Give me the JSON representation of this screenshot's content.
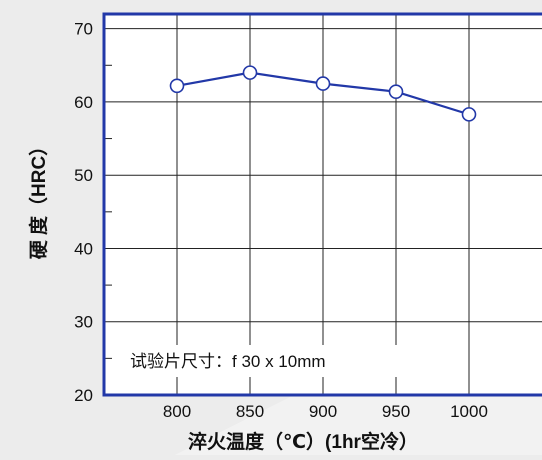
{
  "chart_data": {
    "type": "line",
    "xlabel": "淬火温度（℃）(1hr空冷）",
    "ylabel": "硬 度（HRC）",
    "x": [
      800,
      850,
      900,
      950,
      1000
    ],
    "categories": [
      "800",
      "850",
      "900",
      "950",
      "1000"
    ],
    "series": [
      {
        "values": [
          62.2,
          64.0,
          62.5,
          61.4,
          58.3
        ]
      }
    ],
    "ylim": [
      20,
      72
    ],
    "xlim": [
      750,
      1050
    ],
    "yticks": [
      "20",
      "30",
      "40",
      "50",
      "60",
      "70"
    ],
    "grid": true,
    "annotation": "试验片尺寸：f 30 x 10mm",
    "colors": {
      "line": "#2238a8",
      "marker_fill": "#ffffff",
      "frame": "#2238a8",
      "grid": "#222222",
      "plot_bg": "#ffffff",
      "page_bg": "#ececec"
    }
  }
}
